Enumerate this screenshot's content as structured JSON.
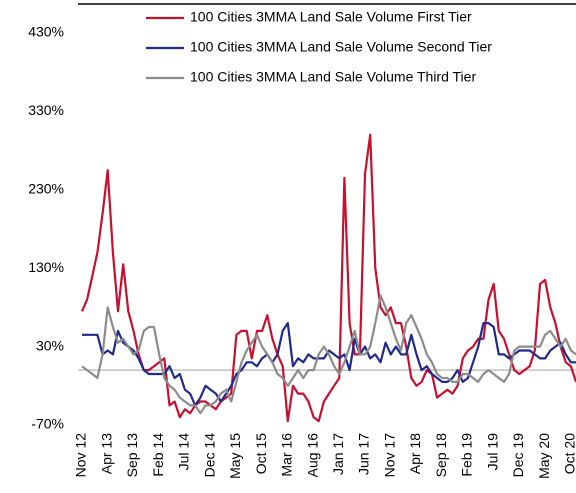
{
  "chart_data": {
    "type": "line",
    "categories": [
      "Nov 12",
      null,
      null,
      null,
      null,
      "Apr 13",
      null,
      null,
      null,
      null,
      "Sep 13",
      null,
      null,
      null,
      null,
      "Feb 14",
      null,
      null,
      null,
      null,
      "Jul 14",
      null,
      null,
      null,
      null,
      "Dec 14",
      null,
      null,
      null,
      null,
      "May 15",
      null,
      null,
      null,
      null,
      "Oct 15",
      null,
      null,
      null,
      null,
      "Mar 16",
      null,
      null,
      null,
      null,
      "Aug 16",
      null,
      null,
      null,
      null,
      "Jan 17",
      null,
      null,
      null,
      null,
      "Jun 17",
      null,
      null,
      null,
      null,
      "Nov 17",
      null,
      null,
      null,
      null,
      "Apr 18",
      null,
      null,
      null,
      null,
      "Sep 18",
      null,
      null,
      null,
      null,
      "Feb 19",
      null,
      null,
      null,
      null,
      "Jul 19",
      null,
      null,
      null,
      null,
      "Dec 19",
      null,
      null,
      null,
      null,
      "May 20",
      null,
      null,
      null,
      null,
      "Oct 20",
      null
    ],
    "series": [
      {
        "name": "100 Cities 3MMA Land Sale Volume First Tier",
        "color": "#c8102e",
        "values": [
          75,
          90,
          120,
          150,
          200,
          255,
          150,
          75,
          135,
          75,
          50,
          20,
          0,
          0,
          5,
          10,
          15,
          -45,
          -40,
          -60,
          -50,
          -55,
          -45,
          -40,
          -40,
          -45,
          -50,
          -40,
          -35,
          -30,
          45,
          50,
          50,
          15,
          50,
          50,
          70,
          40,
          20,
          5,
          -65,
          -20,
          -30,
          -30,
          -40,
          -60,
          -65,
          -40,
          -30,
          -20,
          -10,
          245,
          60,
          20,
          20,
          250,
          300,
          130,
          80,
          70,
          80,
          60,
          60,
          30,
          -10,
          -20,
          -15,
          0,
          -5,
          -35,
          -30,
          -25,
          -30,
          -20,
          15,
          25,
          30,
          40,
          40,
          90,
          110,
          50,
          40,
          20,
          0,
          -5,
          0,
          5,
          25,
          110,
          115,
          80,
          60,
          30,
          10,
          5,
          -15
        ]
      },
      {
        "name": "100 Cities 3MMA Land Sale Volume Second Tier",
        "color": "#1f2a8c",
        "values": [
          45,
          45,
          45,
          45,
          20,
          25,
          20,
          50,
          35,
          30,
          25,
          15,
          0,
          -5,
          -5,
          -5,
          -5,
          5,
          -10,
          -5,
          -25,
          -30,
          -45,
          -35,
          -20,
          -25,
          -30,
          -40,
          -30,
          -20,
          -5,
          0,
          10,
          10,
          5,
          15,
          20,
          10,
          20,
          50,
          60,
          5,
          15,
          10,
          20,
          15,
          15,
          15,
          25,
          20,
          15,
          20,
          0,
          40,
          20,
          30,
          15,
          20,
          10,
          35,
          20,
          30,
          20,
          20,
          45,
          20,
          0,
          5,
          -5,
          -10,
          -15,
          -15,
          -10,
          0,
          -15,
          -10,
          10,
          30,
          60,
          60,
          55,
          20,
          20,
          15,
          20,
          25,
          25,
          25,
          20,
          15,
          15,
          25,
          30,
          35,
          20,
          10,
          10
        ]
      },
      {
        "name": "100 Cities 3MMA Land Sale Volume Third Tier",
        "color": "#8c8c8c",
        "values": [
          5,
          0,
          -5,
          -10,
          20,
          80,
          55,
          35,
          40,
          30,
          20,
          25,
          50,
          55,
          55,
          20,
          -10,
          -20,
          -25,
          -35,
          -40,
          -45,
          -45,
          -55,
          -45,
          -45,
          -40,
          -30,
          -25,
          -40,
          -15,
          10,
          25,
          35,
          45,
          30,
          20,
          10,
          -5,
          -10,
          -20,
          -10,
          0,
          -10,
          0,
          0,
          20,
          30,
          20,
          5,
          -5,
          10,
          30,
          50,
          20,
          20,
          30,
          60,
          95,
          80,
          60,
          40,
          25,
          60,
          70,
          55,
          40,
          20,
          10,
          -5,
          -10,
          -10,
          -15,
          -15,
          -5,
          -5,
          -10,
          -15,
          -5,
          0,
          -5,
          -10,
          -15,
          -5,
          25,
          30,
          30,
          30,
          30,
          30,
          45,
          50,
          40,
          30,
          40,
          25,
          20
        ]
      }
    ],
    "ylim": [
      -70,
      430
    ],
    "yticks": [
      {
        "value": -70,
        "label": "-70%"
      },
      {
        "value": 30,
        "label": "30%"
      },
      {
        "value": 130,
        "label": "130%"
      },
      {
        "value": 230,
        "label": "230%"
      },
      {
        "value": 330,
        "label": "330%"
      },
      {
        "value": 430,
        "label": "430%"
      }
    ],
    "legend": "top"
  }
}
